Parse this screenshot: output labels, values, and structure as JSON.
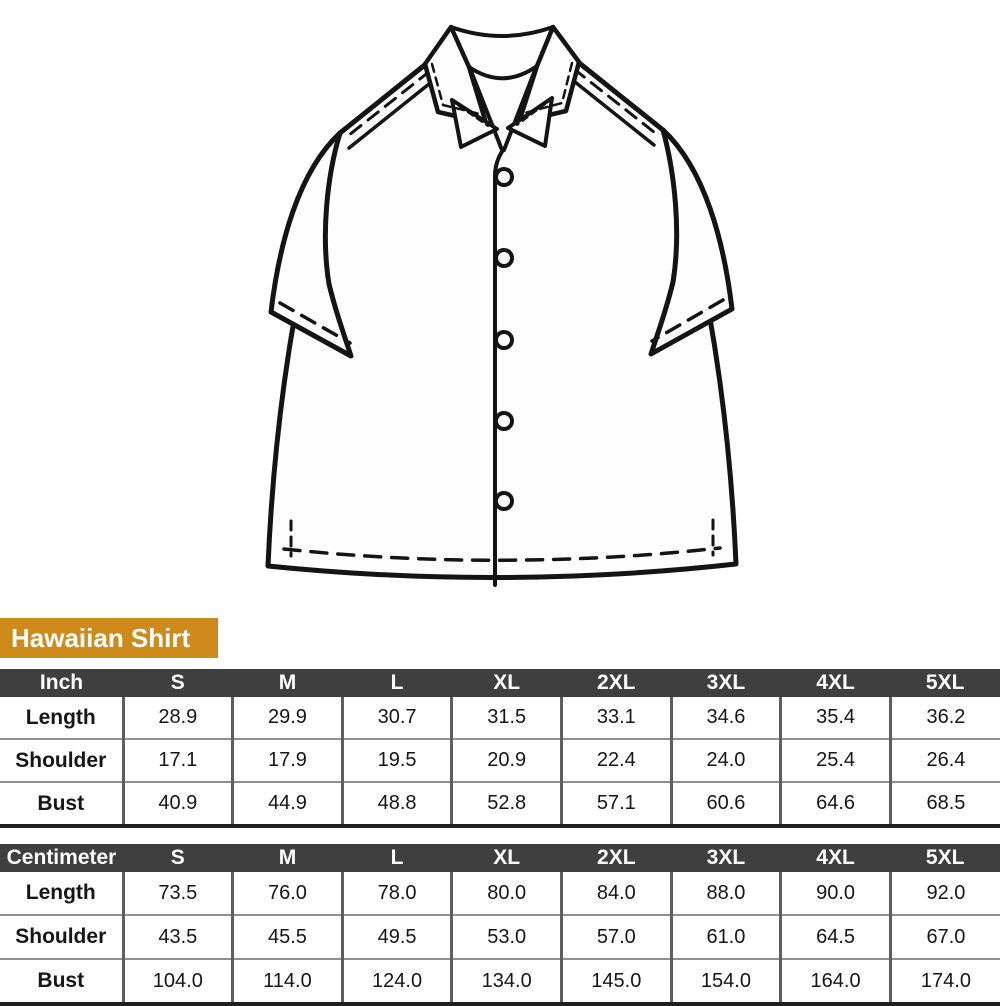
{
  "badge": {
    "label": "Hawaiian Shirt",
    "background_color": "#CE8A1A",
    "text_color": "#FFFFFF"
  },
  "illustration": {
    "description": "flat technical sketch of short-sleeve camp-collar hawaiian shirt, black outline on white, 5 buttons, dashed stitch lines on yoke, collar, sleeve hems and bottom hem",
    "line_color": "#141414",
    "fill_color": "#FDFDFD",
    "button_count": 5
  },
  "size_chart": {
    "header_bg": "#3F3F3F",
    "header_text_color": "#FFFFFF",
    "tables": [
      {
        "unit": "Inch",
        "sizes": [
          "S",
          "M",
          "L",
          "XL",
          "2XL",
          "3XL",
          "4XL",
          "5XL"
        ],
        "rows": [
          {
            "label": "Length",
            "values": [
              "28.9",
              "29.9",
              "30.7",
              "31.5",
              "33.1",
              "34.6",
              "35.4",
              "36.2"
            ]
          },
          {
            "label": "Shoulder",
            "values": [
              "17.1",
              "17.9",
              "19.5",
              "20.9",
              "22.4",
              "24.0",
              "25.4",
              "26.4"
            ]
          },
          {
            "label": "Bust",
            "values": [
              "40.9",
              "44.9",
              "48.8",
              "52.8",
              "57.1",
              "60.6",
              "64.6",
              "68.5"
            ]
          }
        ]
      },
      {
        "unit": "Centimeter",
        "sizes": [
          "S",
          "M",
          "L",
          "XL",
          "2XL",
          "3XL",
          "4XL",
          "5XL"
        ],
        "rows": [
          {
            "label": "Length",
            "values": [
              "73.5",
              "76.0",
              "78.0",
              "80.0",
              "84.0",
              "88.0",
              "90.0",
              "92.0"
            ]
          },
          {
            "label": "Shoulder",
            "values": [
              "43.5",
              "45.5",
              "49.5",
              "53.0",
              "57.0",
              "61.0",
              "64.5",
              "67.0"
            ]
          },
          {
            "label": "Bust",
            "values": [
              "104.0",
              "114.0",
              "124.0",
              "134.0",
              "145.0",
              "154.0",
              "164.0",
              "174.0"
            ]
          }
        ]
      }
    ]
  },
  "chart_data": [
    {
      "type": "table",
      "title": "Hawaiian Shirt size chart (Inch)",
      "columns": [
        "Inch",
        "S",
        "M",
        "L",
        "XL",
        "2XL",
        "3XL",
        "4XL",
        "5XL"
      ],
      "rows": [
        [
          "Length",
          28.9,
          29.9,
          30.7,
          31.5,
          33.1,
          34.6,
          35.4,
          36.2
        ],
        [
          "Shoulder",
          17.1,
          17.9,
          19.5,
          20.9,
          22.4,
          24.0,
          25.4,
          26.4
        ],
        [
          "Bust",
          40.9,
          44.9,
          48.8,
          52.8,
          57.1,
          60.6,
          64.6,
          68.5
        ]
      ]
    },
    {
      "type": "table",
      "title": "Hawaiian Shirt size chart (Centimeter)",
      "columns": [
        "Centimeter",
        "S",
        "M",
        "L",
        "XL",
        "2XL",
        "3XL",
        "4XL",
        "5XL"
      ],
      "rows": [
        [
          "Length",
          73.5,
          76.0,
          78.0,
          80.0,
          84.0,
          88.0,
          90.0,
          92.0
        ],
        [
          "Shoulder",
          43.5,
          45.5,
          49.5,
          53.0,
          57.0,
          61.0,
          64.5,
          67.0
        ],
        [
          "Bust",
          104.0,
          114.0,
          124.0,
          134.0,
          145.0,
          154.0,
          164.0,
          174.0
        ]
      ]
    }
  ]
}
